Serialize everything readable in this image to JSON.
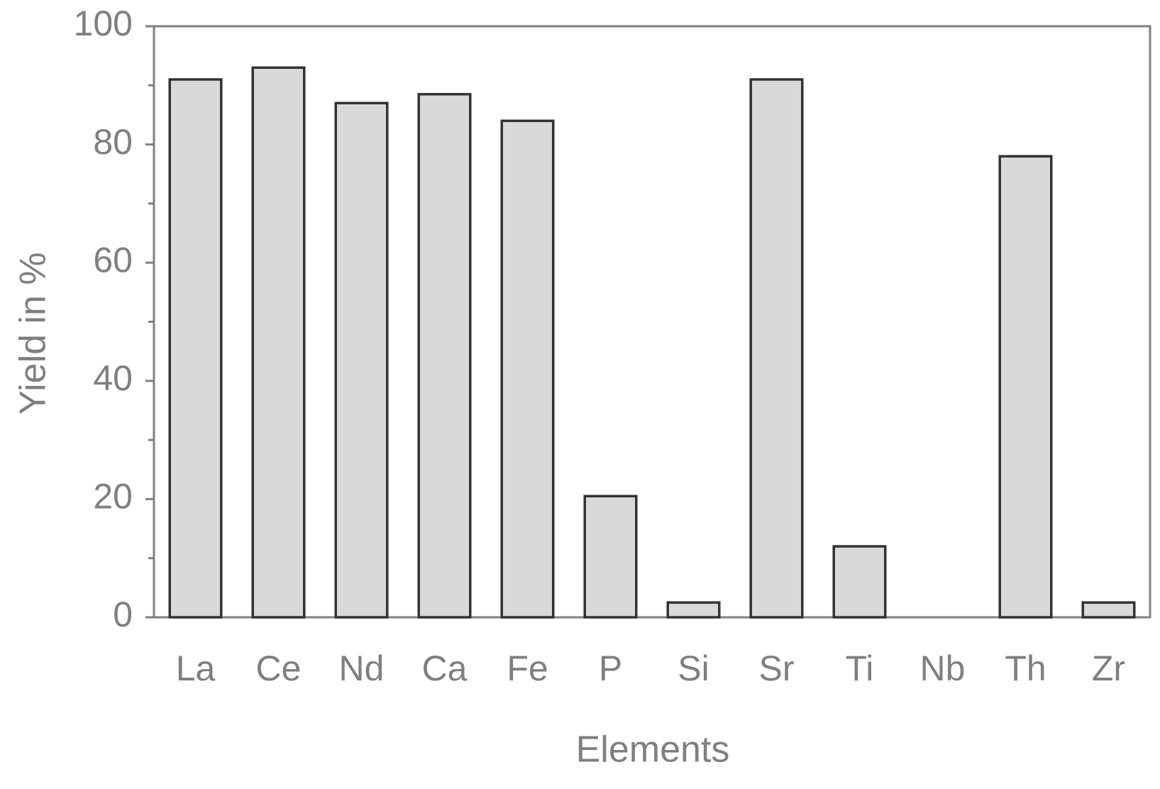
{
  "chart_data": {
    "type": "bar",
    "x_label": "Elements",
    "y_label": "Yield in %",
    "categories": [
      "La",
      "Ce",
      "Nd",
      "Ca",
      "Fe",
      "P",
      "Si",
      "Sr",
      "Ti",
      "Nb",
      "Th",
      "Zr"
    ],
    "values": [
      91,
      93,
      87,
      88.5,
      84,
      20.5,
      2.5,
      91,
      12,
      0,
      78,
      2.5
    ],
    "color": "#d9d9d9",
    "edge_color": "#333333",
    "ylim": [
      0,
      100
    ],
    "yticks": [
      0,
      20,
      40,
      60,
      80,
      100
    ],
    "minor_yticks": [
      10,
      30,
      50,
      70,
      90
    ],
    "grid": false
  }
}
